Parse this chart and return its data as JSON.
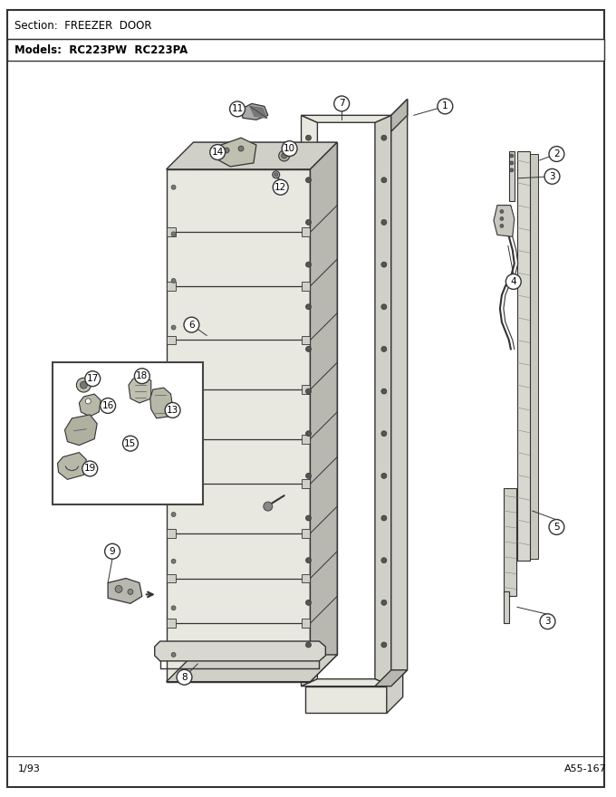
{
  "section_text": "Section:  FREEZER  DOOR",
  "models_text": "Models:  RC223PW  RC223PA",
  "footer_left": "1/93",
  "footer_right": "A55-167",
  "bg_color": "#ffffff",
  "line_color": "#333333",
  "fill_light": "#e8e8e0",
  "fill_mid": "#d0d0c8",
  "fill_dark": "#b8b8b0"
}
